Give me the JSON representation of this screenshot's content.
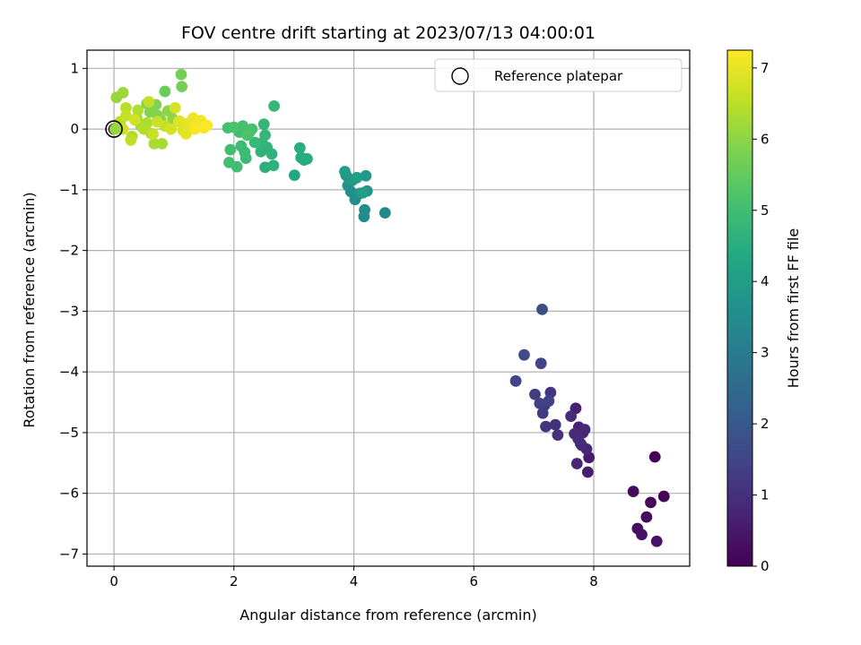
{
  "chart_data": {
    "type": "scatter",
    "title": "FOV centre drift starting at 2023/07/13 04:00:01",
    "xlabel": "Angular distance from reference (arcmin)",
    "ylabel": "Rotation from reference (arcmin)",
    "xlim": [
      -0.45,
      9.6
    ],
    "ylim": [
      -7.2,
      1.3
    ],
    "xticks": [
      0,
      2,
      4,
      6,
      8
    ],
    "yticks": [
      1,
      0,
      -1,
      -2,
      -3,
      -4,
      -5,
      -6,
      -7
    ],
    "grid": true,
    "legend": {
      "placement": "top-right",
      "entries": [
        "Reference platepar"
      ]
    },
    "reference_point": {
      "x": 0,
      "y": 0
    },
    "colorbar": {
      "label": "Hours from first FF file",
      "min": 0,
      "max": 7.25,
      "ticks": [
        0,
        1,
        2,
        3,
        4,
        5,
        6,
        7
      ],
      "colormap": "viridis"
    },
    "points": [
      [
        9.02,
        -5.4,
        0.05
      ],
      [
        9.17,
        -6.05,
        0.1
      ],
      [
        8.95,
        -6.15,
        0.15
      ],
      [
        8.66,
        -5.97,
        0.2
      ],
      [
        8.88,
        -6.39,
        0.25
      ],
      [
        8.73,
        -6.58,
        0.3
      ],
      [
        8.8,
        -6.68,
        0.35
      ],
      [
        9.05,
        -6.79,
        0.4
      ],
      [
        7.92,
        -5.41,
        0.55
      ],
      [
        7.9,
        -5.65,
        0.6
      ],
      [
        7.7,
        -4.6,
        0.65
      ],
      [
        7.75,
        -4.91,
        0.7
      ],
      [
        7.82,
        -5.0,
        0.72
      ],
      [
        7.78,
        -5.18,
        0.75
      ],
      [
        7.88,
        -5.27,
        0.78
      ],
      [
        7.72,
        -5.51,
        0.8
      ],
      [
        7.85,
        -4.95,
        0.82
      ],
      [
        7.68,
        -5.02,
        0.85
      ],
      [
        7.8,
        -5.21,
        0.88
      ],
      [
        7.62,
        -4.73,
        0.9
      ],
      [
        7.74,
        -5.1,
        0.92
      ],
      [
        7.36,
        -4.87,
        1.0
      ],
      [
        7.4,
        -5.04,
        1.05
      ],
      [
        7.2,
        -4.9,
        1.1
      ],
      [
        7.28,
        -4.34,
        1.15
      ],
      [
        7.18,
        -4.55,
        1.2
      ],
      [
        7.15,
        -4.68,
        1.25
      ],
      [
        7.02,
        -4.37,
        1.3
      ],
      [
        7.1,
        -4.52,
        1.35
      ],
      [
        7.25,
        -4.48,
        1.4
      ],
      [
        7.12,
        -3.86,
        1.45
      ],
      [
        6.7,
        -4.15,
        1.5
      ],
      [
        6.84,
        -3.72,
        1.6
      ],
      [
        7.14,
        -2.97,
        1.75
      ],
      [
        4.52,
        -1.38,
        3.4
      ],
      [
        4.17,
        -1.44,
        3.45
      ],
      [
        4.18,
        -1.33,
        3.5
      ],
      [
        4.02,
        -1.16,
        3.55
      ],
      [
        3.95,
        -1.03,
        3.6
      ],
      [
        3.9,
        -0.93,
        3.65
      ],
      [
        4.1,
        -1.06,
        3.7
      ],
      [
        4.22,
        -1.02,
        3.75
      ],
      [
        3.87,
        -0.76,
        3.8
      ],
      [
        3.92,
        -0.82,
        3.85
      ],
      [
        4.2,
        -0.77,
        3.9
      ],
      [
        3.98,
        -0.84,
        3.95
      ],
      [
        3.85,
        -0.7,
        4.0
      ],
      [
        4.05,
        -0.8,
        4.05
      ],
      [
        4.15,
        -1.05,
        4.1
      ],
      [
        3.01,
        -0.76,
        4.35
      ],
      [
        3.17,
        -0.51,
        4.4
      ],
      [
        3.12,
        -0.47,
        4.45
      ],
      [
        3.22,
        -0.49,
        4.5
      ],
      [
        3.1,
        -0.31,
        4.55
      ],
      [
        2.52,
        -0.63,
        4.6
      ],
      [
        2.66,
        -0.6,
        4.62
      ],
      [
        2.63,
        -0.41,
        4.65
      ],
      [
        2.45,
        -0.37,
        4.68
      ],
      [
        2.55,
        -0.3,
        4.7
      ],
      [
        2.47,
        -0.23,
        4.72
      ],
      [
        2.52,
        -0.1,
        4.75
      ],
      [
        2.5,
        0.08,
        4.78
      ],
      [
        2.67,
        0.38,
        4.8
      ],
      [
        2.35,
        -0.22,
        4.85
      ],
      [
        2.26,
        -0.05,
        4.88
      ],
      [
        2.2,
        -0.48,
        4.9
      ],
      [
        2.18,
        -0.38,
        4.92
      ],
      [
        2.12,
        -0.28,
        4.95
      ],
      [
        2.09,
        -0.05,
        4.98
      ],
      [
        2.05,
        -0.62,
        5.0
      ],
      [
        1.94,
        -0.34,
        5.02
      ],
      [
        1.92,
        -0.55,
        5.05
      ],
      [
        1.9,
        0.02,
        5.08
      ],
      [
        2.15,
        0.05,
        5.1
      ],
      [
        2.3,
        0.0,
        5.12
      ],
      [
        2.0,
        0.03,
        5.15
      ],
      [
        2.22,
        -0.1,
        5.18
      ],
      [
        0.85,
        0.62,
        5.6
      ],
      [
        1.12,
        0.9,
        5.7
      ],
      [
        1.13,
        0.7,
        5.72
      ],
      [
        0.55,
        0.42,
        5.8
      ],
      [
        0.7,
        0.4,
        5.85
      ],
      [
        0.6,
        0.28,
        5.9
      ],
      [
        0.73,
        0.22,
        5.92
      ],
      [
        0.78,
        0.15,
        5.95
      ],
      [
        0.9,
        0.3,
        6.0
      ],
      [
        0.98,
        0.17,
        6.05
      ],
      [
        0.04,
        0.52,
        6.1
      ],
      [
        0.15,
        0.6,
        6.15
      ],
      [
        0.38,
        0.18,
        6.2
      ],
      [
        0.45,
        0.05,
        6.22
      ],
      [
        0.62,
        -0.07,
        6.25
      ],
      [
        0.8,
        -0.24,
        6.28
      ],
      [
        0.67,
        -0.24,
        6.3
      ],
      [
        0.55,
        0.1,
        6.35
      ],
      [
        0.3,
        -0.12,
        6.38
      ],
      [
        0.4,
        0.31,
        6.4
      ],
      [
        0.5,
        0.0,
        6.42
      ],
      [
        0.2,
        0.35,
        6.45
      ],
      [
        0.1,
        0.12,
        6.5
      ],
      [
        0.05,
        0.03,
        6.52
      ],
      [
        0.28,
        -0.18,
        6.55
      ],
      [
        0.58,
        0.45,
        6.58
      ],
      [
        0.85,
        0.05,
        6.6
      ],
      [
        0.2,
        0.22,
        6.62
      ],
      [
        0.65,
        -0.08,
        6.65
      ],
      [
        0.72,
        0.12,
        6.7
      ],
      [
        0.15,
        0.0,
        6.72
      ],
      [
        0.35,
        0.15,
        6.75
      ],
      [
        0.95,
        0.0,
        6.78
      ],
      [
        1.02,
        0.35,
        6.8
      ],
      [
        1.1,
        0.13,
        6.85
      ],
      [
        1.15,
        -0.02,
        6.88
      ],
      [
        1.08,
        0.12,
        6.92
      ],
      [
        1.2,
        -0.08,
        6.95
      ],
      [
        1.25,
        0.1,
        7.0
      ],
      [
        1.32,
        0.18,
        7.05
      ],
      [
        1.4,
        0.08,
        7.1
      ],
      [
        1.45,
        0.14,
        7.12
      ],
      [
        1.5,
        0.02,
        7.15
      ],
      [
        1.35,
        0.0,
        7.18
      ],
      [
        1.55,
        0.06,
        7.22
      ],
      [
        0.0,
        0.0,
        0.0
      ],
      [
        0.02,
        0.0,
        6.1
      ]
    ]
  }
}
